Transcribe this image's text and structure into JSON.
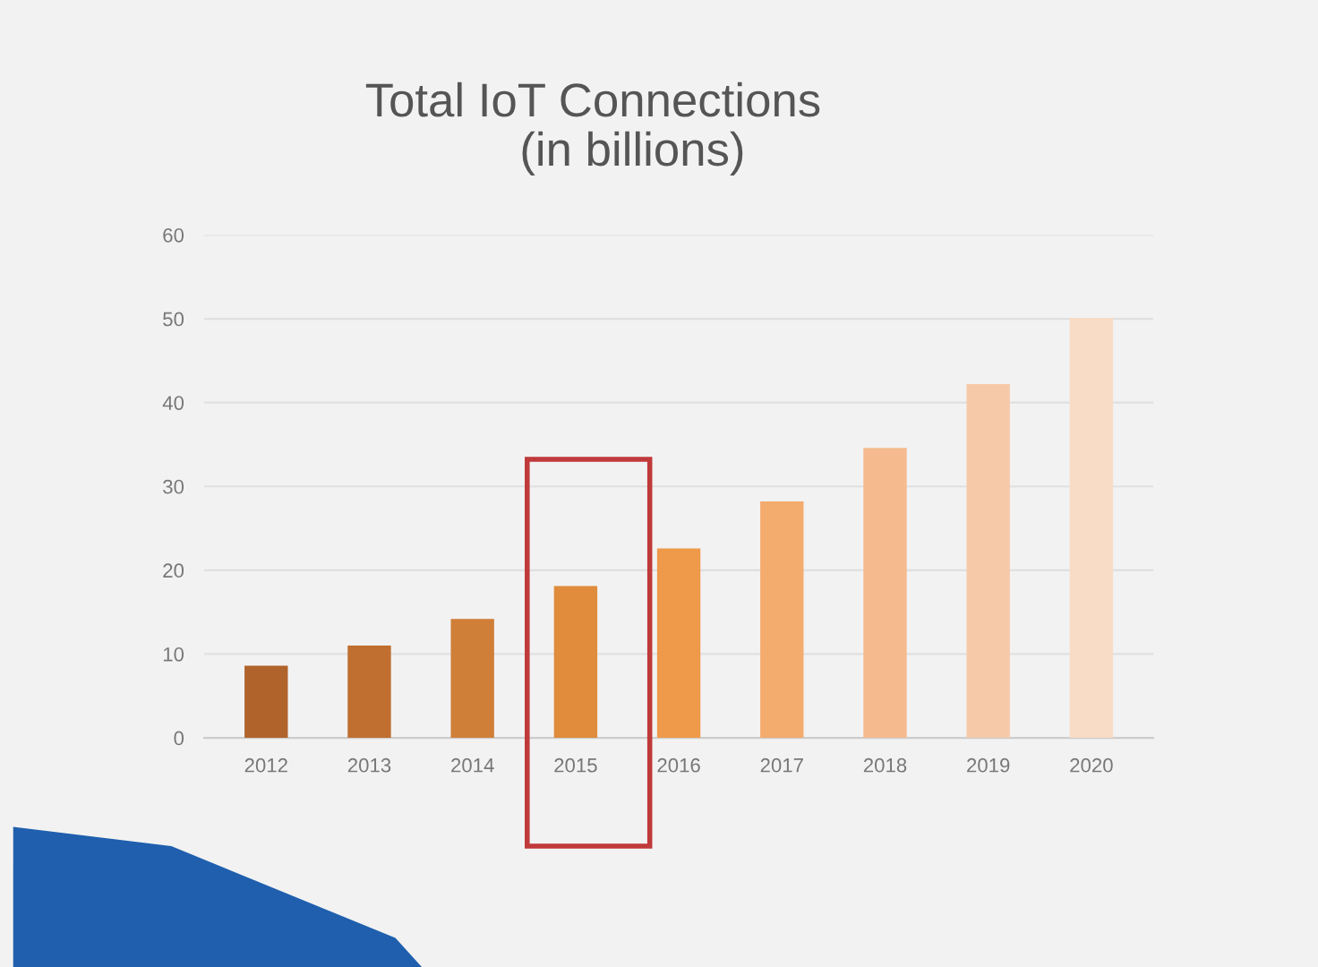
{
  "chart_data": {
    "type": "bar",
    "title": "Total IoT Connections\n      (in billions)",
    "categories": [
      "2012",
      "2013",
      "2014",
      "2015",
      "2016",
      "2017",
      "2018",
      "2019",
      "2020"
    ],
    "values": [
      8.6,
      11.0,
      14.2,
      18.1,
      22.6,
      28.2,
      34.6,
      42.2,
      50.1
    ],
    "colors": [
      "#b0632b",
      "#c06f30",
      "#d07f38",
      "#e08c3c",
      "#ee9a4a",
      "#f3ab6e",
      "#f5bb8e",
      "#f6caa8",
      "#f8dcc6"
    ],
    "ylim": [
      0,
      60
    ],
    "yticks": [
      0,
      10,
      20,
      30,
      40,
      50,
      60
    ],
    "grid": "y",
    "legend": false
  }
}
